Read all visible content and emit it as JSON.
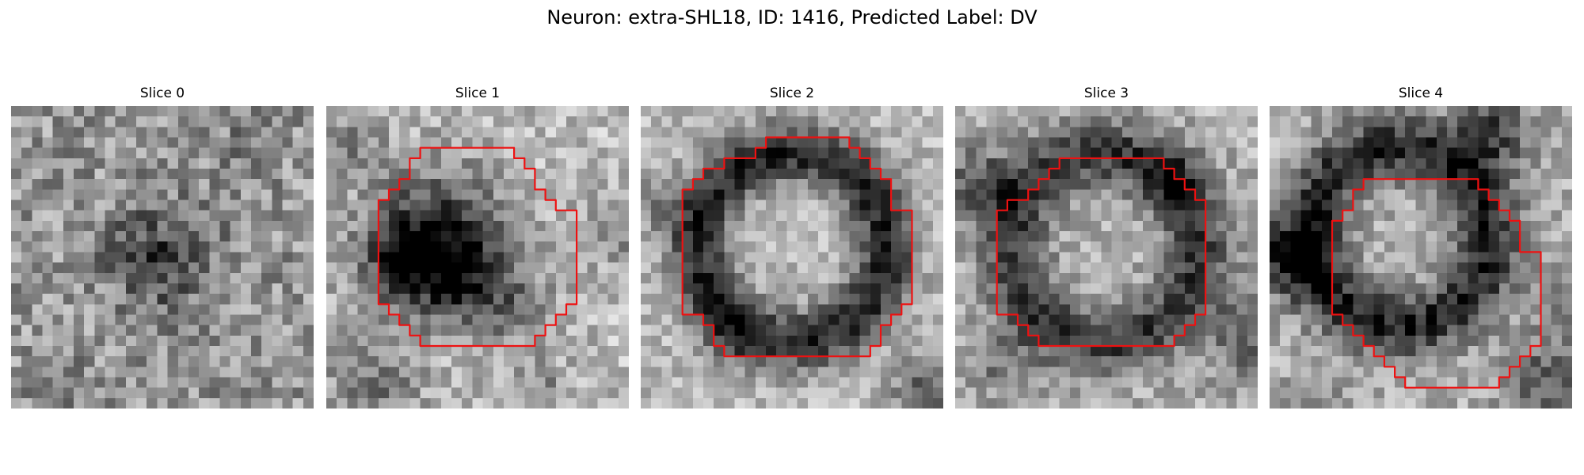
{
  "figure_title": "Neuron: extra-SHL18, ID: 1416, Predicted Label: DV",
  "panels": [
    {
      "title": "Slice 0",
      "has_contour": false
    },
    {
      "title": "Slice 1",
      "has_contour": true
    },
    {
      "title": "Slice 2",
      "has_contour": true
    },
    {
      "title": "Slice 3",
      "has_contour": true
    },
    {
      "title": "Slice 4",
      "has_contour": true
    }
  ],
  "colors": {
    "contour": "#ee1111",
    "background": "#ffffff",
    "colormap": "grayscale"
  }
}
